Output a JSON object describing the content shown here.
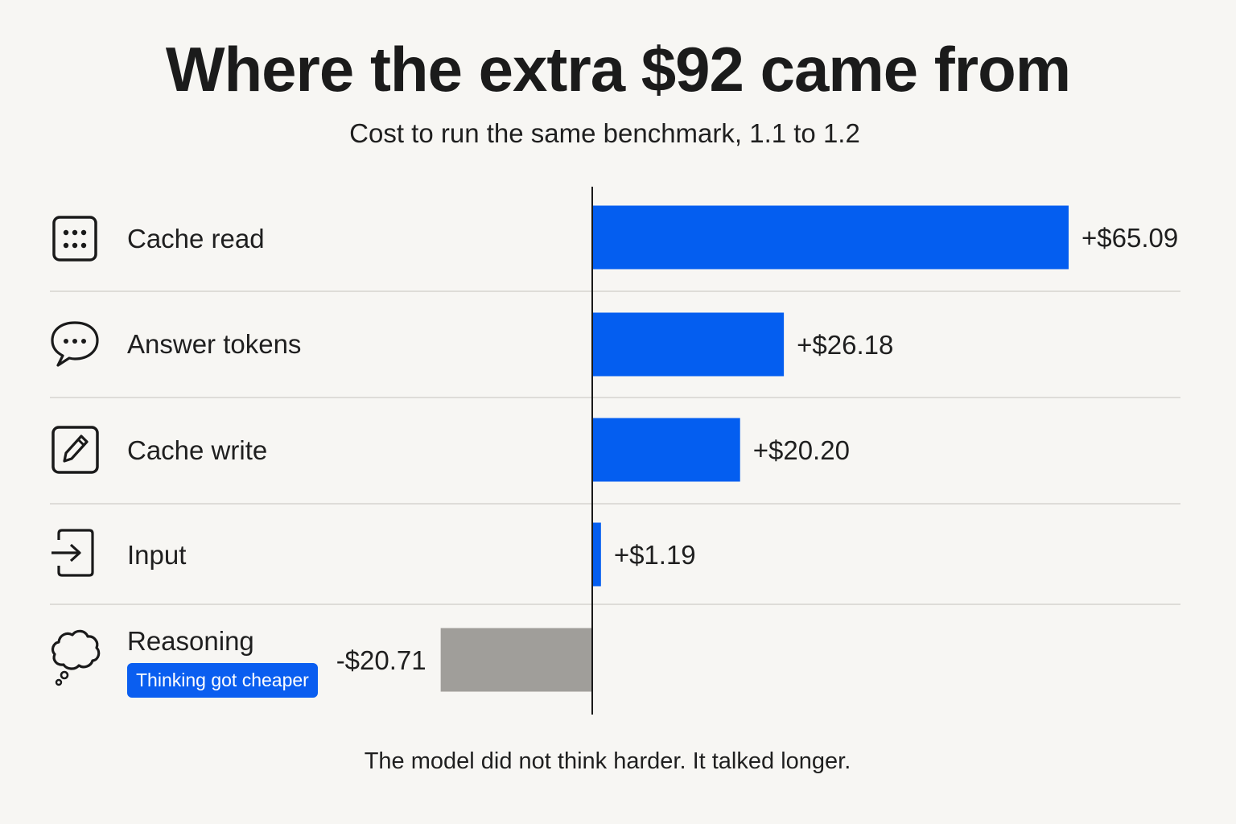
{
  "title": "Where the extra $92 came from",
  "subtitle": "Cost to run the same benchmark, 1.1 to 1.2",
  "footnote": "The model did not think harder. It talked longer.",
  "colors": {
    "positive_bar": "#045ef0",
    "negative_bar": "#a09e9a",
    "axis": "#1a1a1a",
    "badge": "#0a5ef0"
  },
  "rows": [
    {
      "label": "Cache read",
      "icon": "grid-dots-icon"
    },
    {
      "label": "Answer tokens",
      "icon": "speech-bubble-icon"
    },
    {
      "label": "Cache write",
      "icon": "pencil-square-icon"
    },
    {
      "label": "Input",
      "icon": "arrow-into-box-icon"
    },
    {
      "label": "Reasoning",
      "icon": "thought-cloud-icon",
      "badge": "Thinking got cheaper"
    }
  ],
  "chart_data": {
    "type": "bar",
    "orientation": "horizontal",
    "title": "Where the extra $92 came from",
    "subtitle": "Cost to run the same benchmark, 1.1 to 1.2",
    "categories": [
      "Cache read",
      "Answer tokens",
      "Cache write",
      "Input",
      "Reasoning"
    ],
    "values": [
      65.09,
      26.18,
      20.2,
      1.19,
      -20.71
    ],
    "value_labels": [
      "+$65.09",
      "+$26.18",
      "+$20.20",
      "+$1.19",
      "-$20.71"
    ],
    "xlim": [
      -20.71,
      65.09
    ],
    "baseline": 0,
    "grid": false,
    "legend": "none"
  }
}
